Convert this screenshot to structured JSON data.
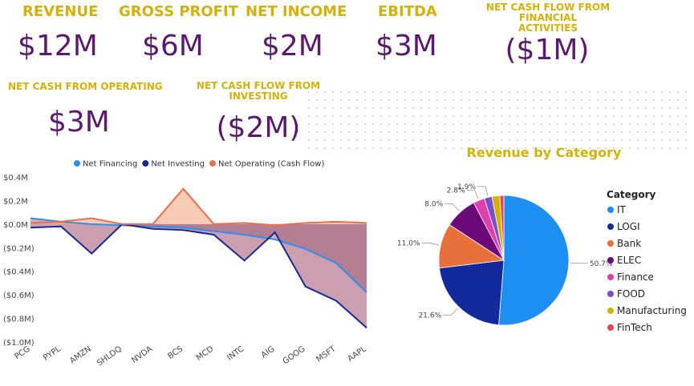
{
  "kpis": {
    "revenue": {
      "label": "REVENUE",
      "value": "$12M"
    },
    "gross_profit": {
      "label": "GROSS PROFIT",
      "value": "$6M"
    },
    "net_income": {
      "label": "NET INCOME",
      "value": "$2M"
    },
    "ebitda": {
      "label": "EBITDA",
      "value": "$3M"
    },
    "net_cash_financial": {
      "label_line1": "NET CASH FLOW FROM FINANCIAL",
      "label_line2": "ACTIVITIES",
      "value": "($1M)"
    },
    "net_cash_operating": {
      "label": "NET CASH FROM OPERATING",
      "value": "$3M"
    },
    "net_cash_investing": {
      "label_line1": "NET CASH FLOW FROM",
      "label_line2": "INVESTING",
      "value": "($2M)"
    }
  },
  "chart_data": [
    {
      "type": "line",
      "title": "",
      "xlabel": "",
      "ylabel": "",
      "categories": [
        "PCG",
        "PYPL",
        "AMZN",
        "SHLDQ",
        "NVDA",
        "BCS",
        "MCD",
        "INTC",
        "AIG",
        "GOOG",
        "MSFT",
        "AAPL"
      ],
      "ylim": [
        -1.0,
        0.4
      ],
      "y_ticks": [
        "$0.4M",
        "$0.2M",
        "$0.0M",
        "($0.2M)",
        "($0.4M)",
        "($0.6M)",
        "($0.8M)",
        "($1.0M)"
      ],
      "legend_position": "top",
      "series": [
        {
          "name": "Net Financing",
          "color": "#2f8ff0",
          "values": [
            0.05,
            0.02,
            0.0,
            -0.01,
            -0.02,
            -0.03,
            -0.06,
            -0.09,
            -0.13,
            -0.21,
            -0.33,
            -0.58
          ]
        },
        {
          "name": "Net Investing",
          "color": "#1b2a8f",
          "values": [
            -0.03,
            -0.02,
            -0.25,
            0.0,
            -0.04,
            -0.05,
            -0.09,
            -0.31,
            -0.07,
            -0.53,
            -0.65,
            -0.88
          ]
        },
        {
          "name": "Net Operating (Cash Flow)",
          "color": "#e8704a",
          "values": [
            0.01,
            0.02,
            0.05,
            0.0,
            0.0,
            0.3,
            0.0,
            0.01,
            -0.01,
            0.01,
            0.02,
            0.01
          ]
        }
      ]
    },
    {
      "type": "pie",
      "title": "Revenue by Category",
      "legend_title": "Category",
      "legend_position": "right",
      "slices": [
        {
          "name": "IT",
          "value": 50.7,
          "label": "50.7%",
          "color": "#1e8ff2"
        },
        {
          "name": "LOGI",
          "value": 21.6,
          "label": "21.6%",
          "color": "#132a9c"
        },
        {
          "name": "Bank",
          "value": 11.0,
          "label": "11.0%",
          "color": "#e8703a"
        },
        {
          "name": "ELEC",
          "value": 8.0,
          "label": "8.0%",
          "color": "#6b0a78"
        },
        {
          "name": "Finance",
          "value": 2.8,
          "label": "2.8%",
          "color": "#e03fae"
        },
        {
          "name": "FOOD",
          "value": 1.9,
          "label": "1.9%",
          "color": "#7650c8"
        },
        {
          "name": "Manufacturing",
          "value": 1.9,
          "label": "",
          "color": "#d4b106"
        },
        {
          "name": "FinTech",
          "value": 1.0,
          "label": "",
          "color": "#e8484f"
        }
      ]
    }
  ]
}
